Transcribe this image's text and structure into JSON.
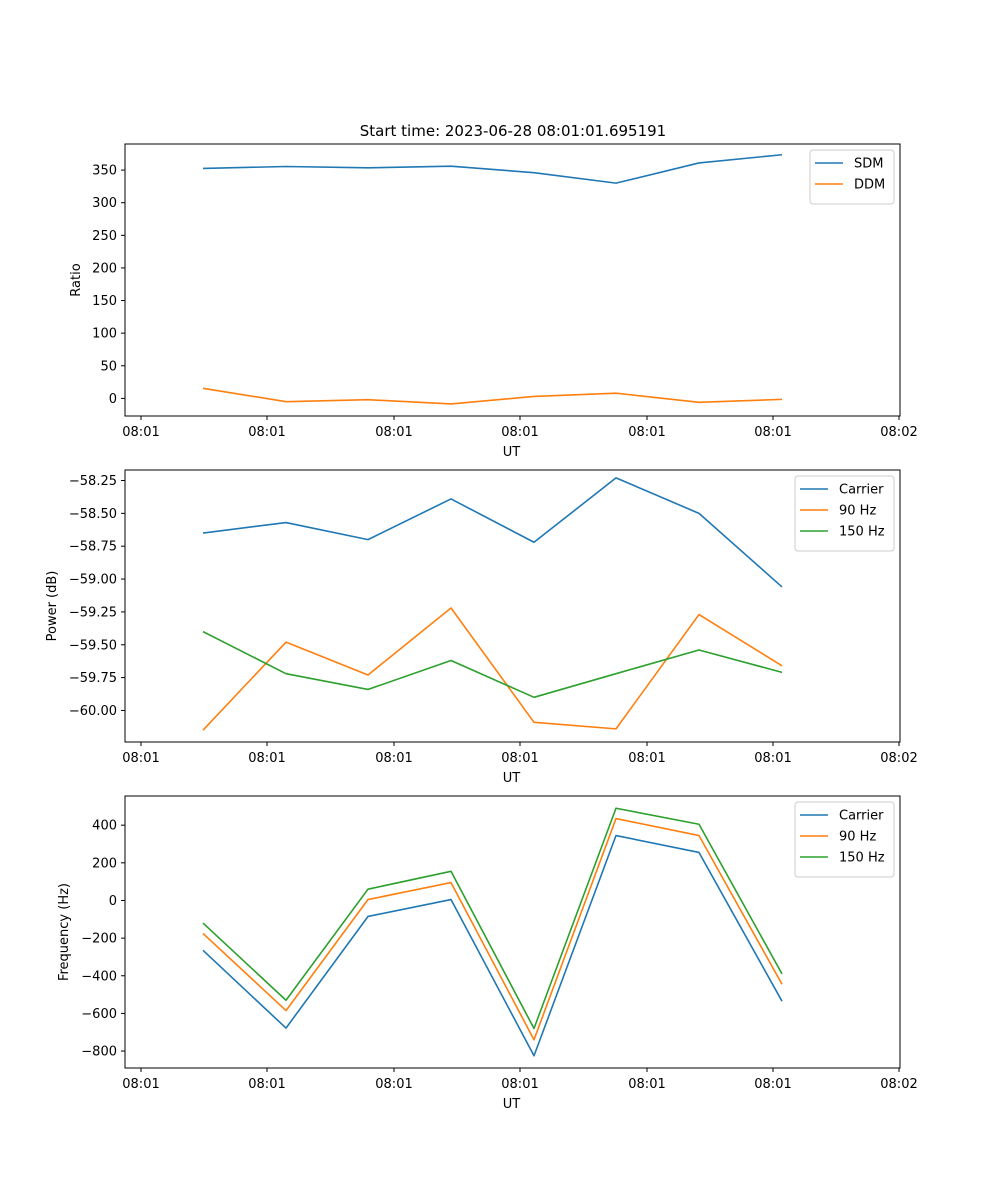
{
  "figure_title": "Start time: 2023-06-28 08:01:01.695191",
  "chart_data": [
    {
      "type": "line",
      "title": "Start time: 2023-06-28 08:01:01.695191",
      "xlabel": "UT",
      "ylabel": "Ratio",
      "x_tick_labels": [
        "08:01",
        "08:01",
        "08:01",
        "08:01",
        "08:01",
        "08:01",
        "08:02"
      ],
      "y_ticks": [
        0,
        50,
        100,
        150,
        200,
        250,
        300,
        350
      ],
      "y_tick_labels": [
        "0",
        "50",
        "100",
        "150",
        "200",
        "250",
        "300",
        "350"
      ],
      "ylim": [
        -27,
        390
      ],
      "grid": false,
      "legend_position": "top-right",
      "series": [
        {
          "name": "SDM",
          "color": "#1f77b4",
          "values": [
            352.5,
            355.5,
            353.5,
            356,
            346,
            330,
            361,
            373.5
          ]
        },
        {
          "name": "DDM",
          "color": "#ff7f0e",
          "values": [
            15.5,
            -5,
            -2,
            -8.5,
            3,
            8,
            -6,
            -1.5
          ]
        }
      ]
    },
    {
      "type": "line",
      "title": "",
      "xlabel": "UT",
      "ylabel": "Power (dB)",
      "x_tick_labels": [
        "08:01",
        "08:01",
        "08:01",
        "08:01",
        "08:01",
        "08:01",
        "08:02"
      ],
      "y_ticks": [
        -60.0,
        -59.75,
        -59.5,
        -59.25,
        -59.0,
        -58.75,
        -58.5,
        -58.25
      ],
      "y_tick_labels": [
        "−60.00",
        "−59.75",
        "−59.50",
        "−59.25",
        "−59.00",
        "−58.75",
        "−58.50",
        "−58.25"
      ],
      "ylim": [
        -60.24,
        -58.17
      ],
      "grid": false,
      "legend_position": "top-right",
      "series": [
        {
          "name": "Carrier",
          "color": "#1f77b4",
          "values": [
            -58.65,
            -58.57,
            -58.7,
            -58.39,
            -58.72,
            -58.23,
            -58.5,
            -59.06
          ]
        },
        {
          "name": "90 Hz",
          "color": "#ff7f0e",
          "values": [
            -60.15,
            -59.48,
            -59.73,
            -59.22,
            -60.09,
            -60.14,
            -59.27,
            -59.66
          ]
        },
        {
          "name": "150 Hz",
          "color": "#2ca02c",
          "values": [
            -59.4,
            -59.72,
            -59.84,
            -59.62,
            -59.9,
            -59.72,
            -59.54,
            -59.71
          ]
        }
      ]
    },
    {
      "type": "line",
      "title": "",
      "xlabel": "UT",
      "ylabel": "Frequency (Hz)",
      "x_tick_labels": [
        "08:01",
        "08:01",
        "08:01",
        "08:01",
        "08:01",
        "08:01",
        "08:02"
      ],
      "y_ticks": [
        -800,
        -600,
        -400,
        -200,
        0,
        200,
        400
      ],
      "y_tick_labels": [
        "−800",
        "−600",
        "−400",
        "−200",
        "0",
        "200",
        "400"
      ],
      "ylim": [
        -890,
        555
      ],
      "grid": false,
      "legend_position": "top-right",
      "series": [
        {
          "name": "Carrier",
          "color": "#1f77b4",
          "values": [
            -265,
            -678,
            -85,
            5,
            -825,
            345,
            255,
            -535
          ]
        },
        {
          "name": "90 Hz",
          "color": "#ff7f0e",
          "values": [
            -175,
            -585,
            5,
            95,
            -740,
            435,
            345,
            -445
          ]
        },
        {
          "name": "150 Hz",
          "color": "#2ca02c",
          "values": [
            -120,
            -530,
            60,
            155,
            -680,
            490,
            405,
            -390
          ]
        }
      ]
    }
  ]
}
